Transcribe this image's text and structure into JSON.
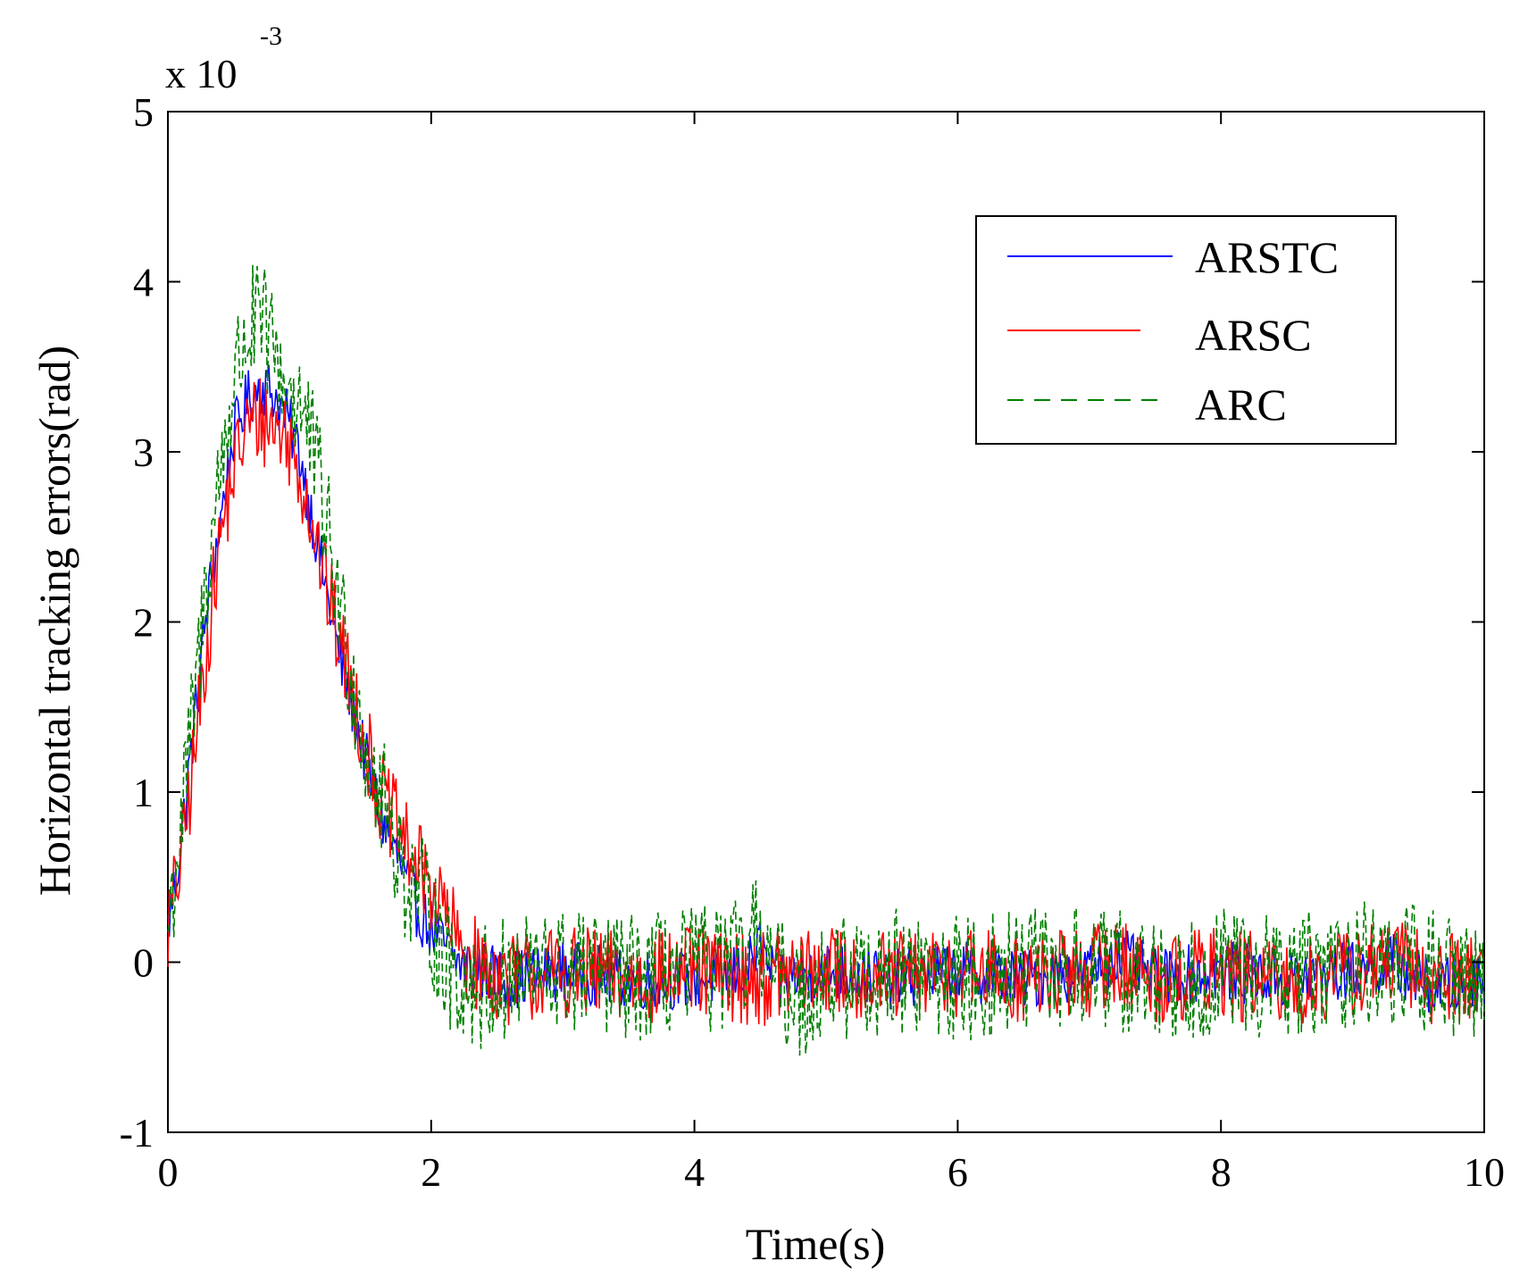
{
  "chart_data": {
    "type": "line",
    "title": "",
    "xlabel": "Time(s)",
    "ylabel": "Horizontal tracking errors(rad)",
    "xlim": [
      0,
      10
    ],
    "ylim": [
      -1,
      5
    ],
    "y_scale_base": "x 10",
    "y_scale_exponent": "-3",
    "xticks": [
      0,
      2,
      4,
      6,
      8,
      10
    ],
    "xtick_labels": [
      "0",
      "2",
      "4",
      "6",
      "8",
      "10"
    ],
    "yticks": [
      -1,
      0,
      1,
      2,
      3,
      4,
      5
    ],
    "ytick_labels": [
      "-1",
      "0",
      "1",
      "2",
      "3",
      "4",
      "5"
    ],
    "grid": false,
    "legend_position": "top-right",
    "series": [
      {
        "name": "ARSTC",
        "color": "#0000ff",
        "linestyle": "solid",
        "x": [
          0,
          0.1,
          0.2,
          0.3,
          0.4,
          0.5,
          0.6,
          0.7,
          0.8,
          0.9,
          1.0,
          1.1,
          1.2,
          1.3,
          1.4,
          1.5,
          1.6,
          1.7,
          1.8,
          1.9,
          2.0,
          2.1,
          2.2,
          2.4,
          2.6,
          3.0,
          3.5,
          4.0,
          4.4,
          4.5,
          4.6,
          5.0,
          5.5,
          6.0,
          6.5,
          7.0,
          7.2,
          7.5,
          8.0,
          8.5,
          9.0,
          9.3,
          9.6,
          10.0
        ],
        "y": [
          0.2,
          0.7,
          1.4,
          2.1,
          2.6,
          3.1,
          3.3,
          3.4,
          3.35,
          3.2,
          3.0,
          2.6,
          2.2,
          1.8,
          1.5,
          1.2,
          0.9,
          0.7,
          0.5,
          0.3,
          0.2,
          0.1,
          0.0,
          -0.05,
          -0.1,
          -0.05,
          -0.1,
          -0.1,
          -0.05,
          0.1,
          -0.1,
          -0.05,
          -0.1,
          -0.05,
          -0.1,
          -0.05,
          0.05,
          -0.1,
          -0.05,
          -0.1,
          -0.05,
          0.0,
          -0.15,
          -0.1
        ],
        "noise": 0.18
      },
      {
        "name": "ARSC",
        "color": "#ff0000",
        "linestyle": "solid",
        "x": [
          0,
          0.1,
          0.2,
          0.3,
          0.4,
          0.5,
          0.6,
          0.7,
          0.8,
          0.9,
          1.0,
          1.1,
          1.2,
          1.3,
          1.4,
          1.5,
          1.6,
          1.7,
          1.8,
          1.9,
          2.0,
          2.1,
          2.2,
          2.4,
          2.6,
          3.0,
          3.5,
          4.0,
          4.5,
          5.0,
          5.5,
          6.0,
          6.5,
          7.0,
          7.2,
          7.5,
          8.0,
          8.5,
          9.0,
          9.3,
          9.6,
          10.0
        ],
        "y": [
          0.2,
          0.6,
          1.2,
          1.9,
          2.5,
          2.9,
          3.15,
          3.2,
          3.15,
          3.1,
          2.9,
          2.6,
          2.2,
          1.9,
          1.6,
          1.3,
          1.0,
          0.85,
          0.7,
          0.55,
          0.45,
          0.3,
          0.1,
          -0.05,
          -0.1,
          -0.05,
          -0.1,
          -0.05,
          -0.1,
          -0.05,
          -0.1,
          -0.05,
          -0.1,
          -0.05,
          0.0,
          -0.1,
          -0.05,
          -0.15,
          -0.05,
          0.0,
          -0.1,
          -0.05
        ],
        "noise": 0.28
      },
      {
        "name": "ARC",
        "color": "#007f00",
        "linestyle": "dashed",
        "x": [
          0,
          0.1,
          0.2,
          0.3,
          0.4,
          0.5,
          0.6,
          0.7,
          0.8,
          0.9,
          1.0,
          1.1,
          1.2,
          1.3,
          1.4,
          1.5,
          1.6,
          1.7,
          1.8,
          1.9,
          2.0,
          2.1,
          2.2,
          2.4,
          2.6,
          3.0,
          3.5,
          4.0,
          4.4,
          4.5,
          4.6,
          4.8,
          5.0,
          5.5,
          6.0,
          6.5,
          7.0,
          7.5,
          8.0,
          8.5,
          9.0,
          9.5,
          10.0
        ],
        "y": [
          0.2,
          0.8,
          1.5,
          2.3,
          2.9,
          3.4,
          3.7,
          3.75,
          3.6,
          3.4,
          3.3,
          3.0,
          2.6,
          2.1,
          1.7,
          1.3,
          1.0,
          0.8,
          0.5,
          0.4,
          0.25,
          0.0,
          -0.1,
          -0.15,
          -0.1,
          -0.05,
          -0.1,
          -0.05,
          0.0,
          0.2,
          -0.1,
          -0.2,
          -0.1,
          -0.05,
          -0.1,
          -0.05,
          -0.05,
          -0.1,
          -0.05,
          -0.1,
          0.0,
          -0.05,
          -0.1
        ],
        "noise": 0.38
      }
    ]
  }
}
